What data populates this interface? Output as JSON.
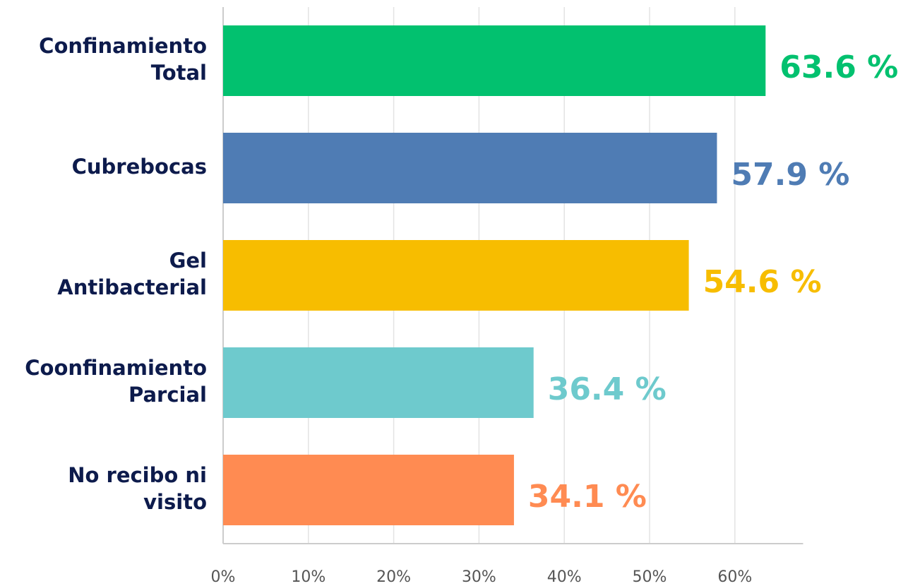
{
  "chart_data": {
    "type": "barh",
    "categories": [
      [
        "Confinamiento",
        "Total"
      ],
      [
        "Cubrebocas"
      ],
      [
        "Gel",
        "Antibacterial"
      ],
      [
        "Coonfinamiento",
        "Parcial"
      ],
      [
        "No recibo ni",
        "visito"
      ]
    ],
    "values": [
      63.6,
      57.9,
      54.6,
      36.4,
      34.1
    ],
    "value_labels": [
      "63.6 %",
      "57.9 %",
      "54.6 %",
      "36.4 %",
      "34.1 %"
    ],
    "colors": [
      "#02c16f",
      "#4f7cb4",
      "#f7bd00",
      "#6ecacd",
      "#ff8b52"
    ],
    "xlim": [
      0,
      68
    ],
    "xticks": [
      {
        "value": 0,
        "label": "0%"
      },
      {
        "value": 10,
        "label": "10%"
      },
      {
        "value": 20,
        "label": "20%"
      },
      {
        "value": 30,
        "label": "30%"
      },
      {
        "value": 40,
        "label": "40%"
      },
      {
        "value": 50,
        "label": "50%"
      },
      {
        "value": 60,
        "label": "60%"
      }
    ],
    "grid": true
  }
}
